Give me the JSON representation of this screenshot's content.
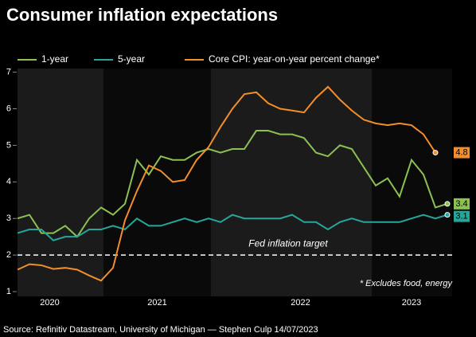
{
  "chart_data": {
    "type": "line",
    "title": "Consumer inflation expectations",
    "source": "Source: Refinitiv Datastream, University of Michigan — Stephen Culp 14/07/2023",
    "note": "* Excludes food, energy",
    "target": {
      "value": 2,
      "label": "Fed inflation target"
    },
    "x": [
      0,
      1,
      2,
      3,
      4,
      5,
      6,
      7,
      8,
      9,
      10,
      11,
      12,
      13,
      14,
      15,
      16,
      17,
      18,
      19,
      20,
      21,
      22,
      23,
      24,
      25,
      26,
      27,
      28,
      29,
      30,
      31,
      32,
      33,
      34,
      35,
      36
    ],
    "xlim": [
      0,
      36.4
    ],
    "xticks": [
      {
        "value": 2.7,
        "label": "2020"
      },
      {
        "value": 11.7,
        "label": "2021"
      },
      {
        "value": 23.7,
        "label": "2022"
      },
      {
        "value": 33,
        "label": "2023"
      }
    ],
    "ylim": [
      0.87,
      7.1
    ],
    "yticks": [
      1,
      2,
      3,
      4,
      5,
      6,
      7
    ],
    "grid": false,
    "series": [
      {
        "name": "1-year",
        "color": "#8cc152",
        "values": [
          3.0,
          3.1,
          2.6,
          2.6,
          2.8,
          2.5,
          3.0,
          3.3,
          3.1,
          3.4,
          4.6,
          4.2,
          4.7,
          4.6,
          4.6,
          4.8,
          4.9,
          4.8,
          4.9,
          4.9,
          5.4,
          5.4,
          5.3,
          5.3,
          5.2,
          4.8,
          4.7,
          5.0,
          4.9,
          4.4,
          3.9,
          4.1,
          3.6,
          4.6,
          4.2,
          3.3,
          3.4
        ]
      },
      {
        "name": "5-year",
        "color": "#26a69a",
        "values": [
          2.6,
          2.7,
          2.7,
          2.4,
          2.5,
          2.5,
          2.7,
          2.7,
          2.8,
          2.7,
          3.0,
          2.8,
          2.8,
          2.9,
          3.0,
          2.9,
          3.0,
          2.9,
          3.1,
          3.0,
          3.0,
          3.0,
          3.0,
          3.1,
          2.9,
          2.9,
          2.7,
          2.9,
          3.0,
          2.9,
          2.9,
          2.9,
          2.9,
          3.0,
          3.1,
          3.0,
          3.1
        ]
      },
      {
        "name": "Core CPI: year-on-year percent change*",
        "color": "#f28e2b",
        "values": [
          1.6,
          1.75,
          1.72,
          1.62,
          1.65,
          1.6,
          1.44,
          1.3,
          1.65,
          2.95,
          3.75,
          4.45,
          4.3,
          4.0,
          4.05,
          4.6,
          4.95,
          5.5,
          6.0,
          6.4,
          6.45,
          6.15,
          6.0,
          5.95,
          5.9,
          6.3,
          6.6,
          6.25,
          5.95,
          5.7,
          5.6,
          5.55,
          5.6,
          5.55,
          5.3,
          4.8,
          null
        ]
      }
    ]
  }
}
